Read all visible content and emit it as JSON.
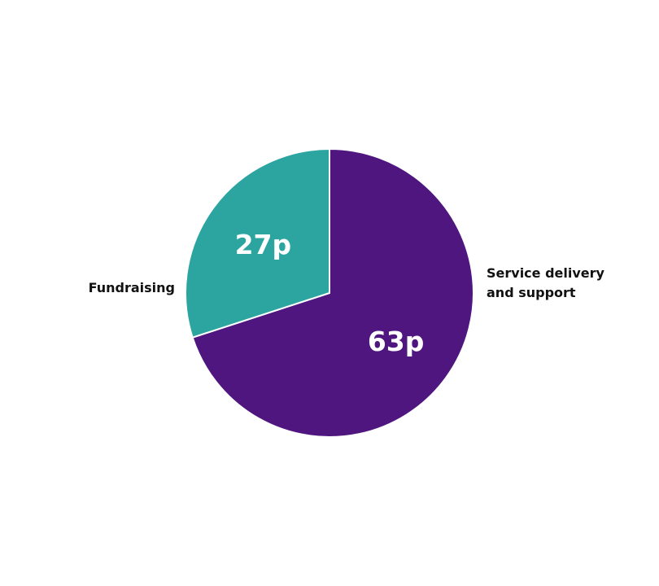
{
  "chart_data": {
    "type": "pie",
    "title": "",
    "slices": [
      {
        "category": "Service delivery and support",
        "category_lines": [
          "Service delivery",
          "and support"
        ],
        "value": 63,
        "value_label": "63p",
        "color": "#4f1680"
      },
      {
        "category": "Fundraising",
        "category_lines": [
          "Fundraising"
        ],
        "value": 27,
        "value_label": "27p",
        "color": "#2ca4a0"
      }
    ],
    "legend": "none",
    "separator_color": "#ffffff"
  }
}
